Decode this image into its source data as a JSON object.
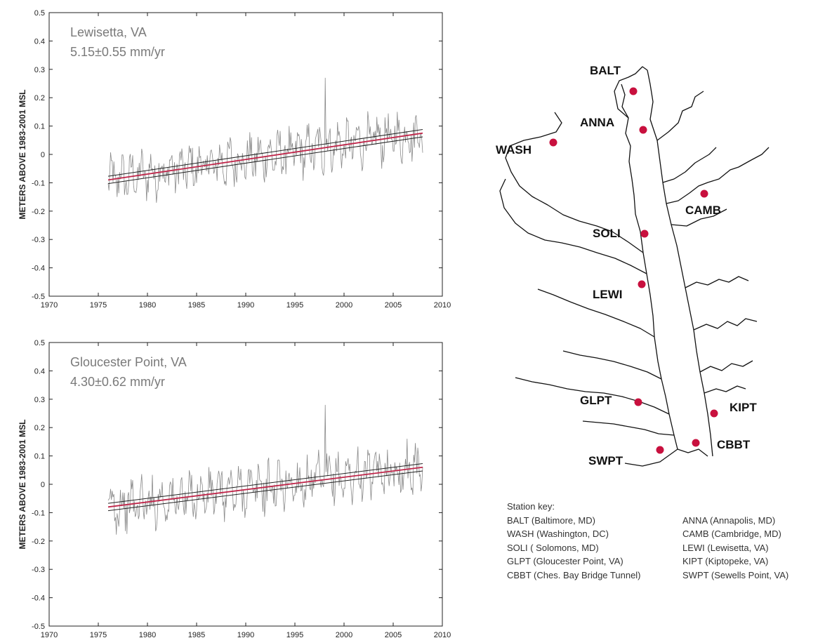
{
  "chart_data": [
    {
      "type": "line",
      "station": "Lewisetta, VA",
      "rate": "5.15±0.55 mm/yr",
      "ylabel": "METERS ABOVE 1983-2001 MSL",
      "xlim": [
        1970,
        2010
      ],
      "ylim": [
        -0.5,
        0.5
      ],
      "xticks": [
        "1970",
        "1975",
        "1980",
        "1985",
        "1990",
        "1995",
        "2000",
        "2005",
        "2010"
      ],
      "yticks": [
        "-0.5",
        "-0.4",
        "-0.3",
        "-0.2",
        "-0.1",
        "0",
        "0.1",
        "0.2",
        "0.3",
        "0.4",
        "0.5"
      ],
      "grid": false,
      "series": [
        {
          "kind": "monthly",
          "color": "#8a8a8a",
          "x_start": 1976.0,
          "x_end": 2008.0,
          "peak": {
            "x": 1998.1,
            "y": 0.27
          }
        },
        {
          "kind": "trend",
          "color": "#c0264a",
          "x": [
            1976.0,
            2008.0
          ],
          "y": [
            -0.09,
            0.075
          ]
        },
        {
          "kind": "confidence",
          "color": "#222222",
          "band": 0.013
        }
      ]
    },
    {
      "type": "line",
      "station": "Gloucester Point, VA",
      "rate": "4.30±0.62 mm/yr",
      "ylabel": "METERS ABOVE 1983-2001 MSL",
      "xlim": [
        1970,
        2010
      ],
      "ylim": [
        -0.5,
        0.5
      ],
      "xticks": [
        "1970",
        "1975",
        "1980",
        "1985",
        "1990",
        "1995",
        "2000",
        "2005",
        "2010"
      ],
      "yticks": [
        "-0.5",
        "-0.4",
        "-0.3",
        "-0.2",
        "-0.1",
        "0",
        "0.1",
        "0.2",
        "0.3",
        "0.4",
        "0.5"
      ],
      "grid": false,
      "series": [
        {
          "kind": "monthly",
          "color": "#8a8a8a",
          "x_start": 1976.0,
          "x_end": 2008.0,
          "peak": {
            "x": 1998.1,
            "y": 0.28
          }
        },
        {
          "kind": "trend",
          "color": "#c0264a",
          "x": [
            1976.0,
            2008.0
          ],
          "y": [
            -0.08,
            0.06
          ]
        },
        {
          "kind": "confidence",
          "color": "#222222",
          "band": 0.013
        }
      ]
    }
  ],
  "map": {
    "station_color": "#c8103e",
    "stations": [
      "BALT",
      "ANNA",
      "WASH",
      "CAMB",
      "SOLI",
      "LEWI",
      "GLPT",
      "KIPT",
      "CBBT",
      "SWPT"
    ]
  },
  "key": {
    "title": "Station key:",
    "rows": [
      [
        "BALT (Baltimore, MD)",
        "ANNA (Annapolis, MD)"
      ],
      [
        "WASH (Washington, DC)",
        "CAMB (Cambridge, MD)"
      ],
      [
        "SOLI ( Solomons, MD)",
        "LEWI (Lewisetta, VA)"
      ],
      [
        "GLPT (Gloucester Point, VA)",
        "KIPT (Kiptopeke, VA)"
      ],
      [
        "CBBT (Ches. Bay Bridge Tunnel)",
        "SWPT (Sewells Point, VA)"
      ]
    ]
  }
}
